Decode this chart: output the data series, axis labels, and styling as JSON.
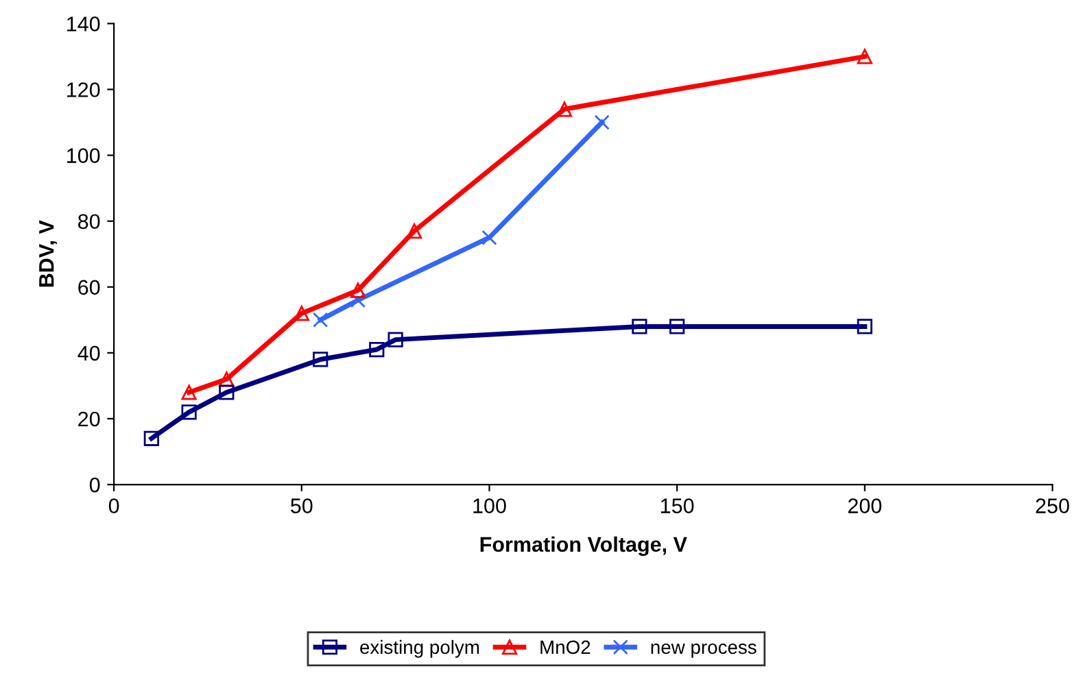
{
  "chart_data": {
    "type": "line",
    "xlabel": "Formation Voltage, V",
    "ylabel": "BDV, V",
    "xlim": [
      0,
      250
    ],
    "xticks": [
      0,
      50,
      100,
      150,
      200,
      250
    ],
    "ylim": [
      0,
      140
    ],
    "yticks": [
      0,
      20,
      40,
      60,
      80,
      100,
      120,
      140
    ],
    "grid": false,
    "legend": "bottom",
    "line_style": "solid",
    "series": [
      {
        "name": "existing polym",
        "color": "#000080",
        "marker": "square",
        "x": [
          10,
          20,
          30,
          55,
          70,
          75,
          140,
          150,
          200
        ],
        "values": [
          14,
          22,
          28,
          38,
          41,
          44,
          48,
          48,
          48
        ]
      },
      {
        "name": "MnO2",
        "color": "#ff0000",
        "marker": "triangle",
        "x": [
          20,
          30,
          50,
          65,
          80,
          120,
          200
        ],
        "values": [
          28,
          32,
          52,
          59,
          77,
          114,
          130
        ]
      },
      {
        "name": "new process",
        "color": "#3366ff",
        "marker": "cross",
        "x": [
          55,
          65,
          100,
          130
        ],
        "values": [
          50,
          56,
          75,
          110
        ]
      }
    ]
  }
}
